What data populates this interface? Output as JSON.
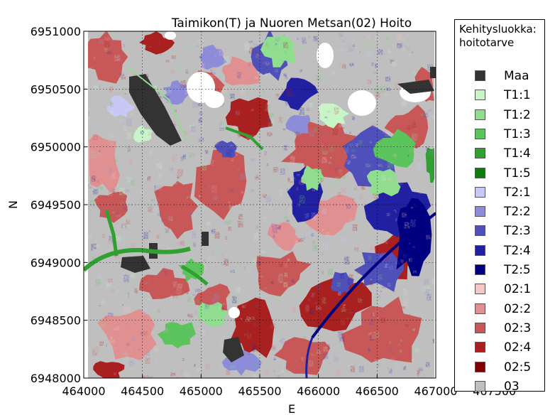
{
  "chart_data": {
    "type": "heatmap",
    "title": "Taimikon(T) ja Nuoren Metsan(02) Hoito",
    "xlabel": "E",
    "ylabel": "N",
    "xlim": [
      464000,
      467000
    ],
    "ylim": [
      6948000,
      6951000
    ],
    "x_ticks": [
      "464000",
      "464500",
      "465000",
      "465500",
      "466000",
      "466500",
      "467000",
      "467500"
    ],
    "y_ticks": [
      "6948000",
      "6948500",
      "6949000",
      "6949500",
      "6950000",
      "6950500",
      "6951000"
    ],
    "grid": true,
    "legend_placement": "right",
    "legend_title": "Kehitysluokka:\nhoitotarve",
    "legend": [
      {
        "label": "Maa",
        "color": "#333333"
      },
      {
        "label": "T1:1",
        "color": "#c8f5c8"
      },
      {
        "label": "T1:2",
        "color": "#90dd90"
      },
      {
        "label": "T1:3",
        "color": "#5cc45c"
      },
      {
        "label": "T1:4",
        "color": "#30a030"
      },
      {
        "label": "T1:5",
        "color": "#0a800a"
      },
      {
        "label": "T2:1",
        "color": "#c8c8f5"
      },
      {
        "label": "T2:2",
        "color": "#8c8cd8"
      },
      {
        "label": "T2:3",
        "color": "#5050bb"
      },
      {
        "label": "T2:4",
        "color": "#2020a0"
      },
      {
        "label": "T2:5",
        "color": "#000080"
      },
      {
        "label": "02:1",
        "color": "#f5c8c8"
      },
      {
        "label": "02:2",
        "color": "#e09090"
      },
      {
        "label": "02:3",
        "color": "#c85858"
      },
      {
        "label": "02:4",
        "color": "#a82020"
      },
      {
        "label": "02:5",
        "color": "#800000"
      },
      {
        "label": "03",
        "color": "#bfbfbf"
      }
    ],
    "nodata_color": "#ffffff"
  }
}
